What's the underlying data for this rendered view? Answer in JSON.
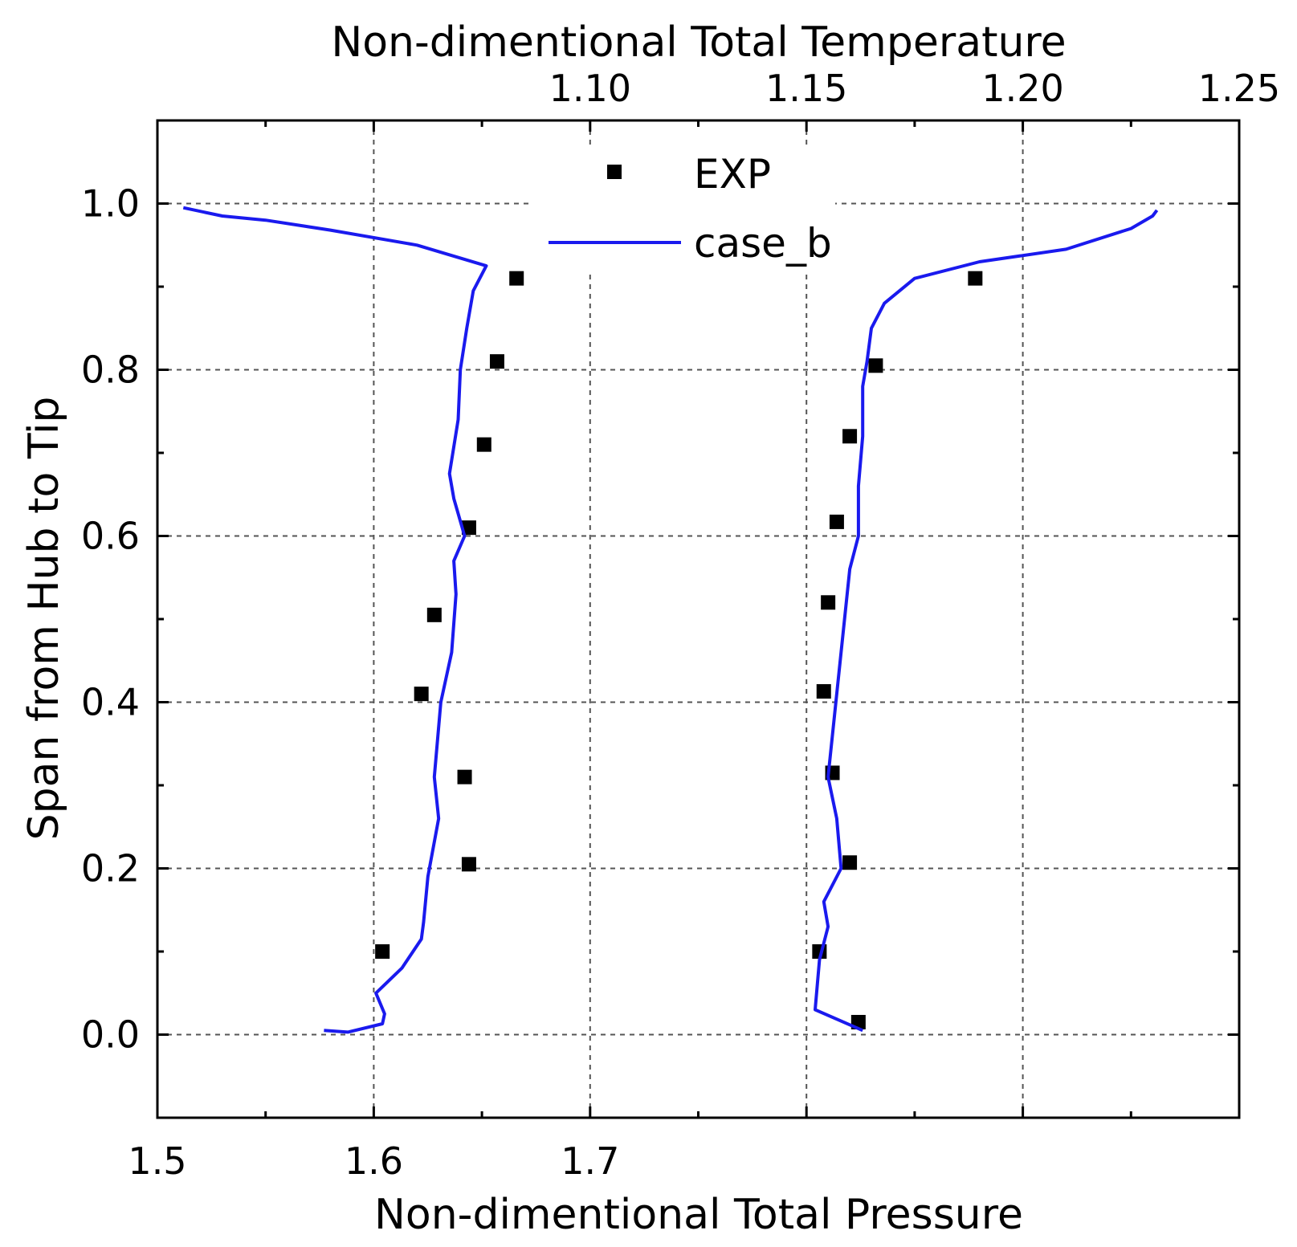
{
  "chart_data": {
    "type": "line",
    "title": "",
    "xlabel": "Non-dimentional Total Pressure",
    "ylabel": "Span from Hub to Tip",
    "x2label": "Non-dimentional Total Temperature",
    "xlim": [
      1.5,
      2.0
    ],
    "x2lim": [
      1.0,
      1.25
    ],
    "ylim": [
      -0.1,
      1.1
    ],
    "grid": true,
    "legend": {
      "position": "top-center"
    },
    "x_ticks": [
      {
        "value": 1.5,
        "label": "1.5"
      },
      {
        "value": 1.6,
        "label": "1.6"
      },
      {
        "value": 1.7,
        "label": "1.7"
      }
    ],
    "x2_ticks": [
      {
        "value": 1.1,
        "label": "1.10"
      },
      {
        "value": 1.15,
        "label": "1.15"
      },
      {
        "value": 1.2,
        "label": "1.20"
      },
      {
        "value": 1.25,
        "label": "1.25"
      }
    ],
    "y_ticks": [
      {
        "value": 0.0,
        "label": "0.0"
      },
      {
        "value": 0.2,
        "label": "0.2"
      },
      {
        "value": 0.4,
        "label": "0.4"
      },
      {
        "value": 0.6,
        "label": "0.6"
      },
      {
        "value": 0.8,
        "label": "0.8"
      },
      {
        "value": 1.0,
        "label": "1.0"
      }
    ],
    "series": [
      {
        "name": "EXP",
        "kind": "scatter",
        "color": "#000000",
        "axis": "bottom",
        "points": [
          {
            "x": 1.666,
            "y": 0.91
          },
          {
            "x": 1.657,
            "y": 0.81
          },
          {
            "x": 1.651,
            "y": 0.71
          },
          {
            "x": 1.644,
            "y": 0.61
          },
          {
            "x": 1.628,
            "y": 0.505
          },
          {
            "x": 1.622,
            "y": 0.41
          },
          {
            "x": 1.642,
            "y": 0.31
          },
          {
            "x": 1.644,
            "y": 0.205
          },
          {
            "x": 1.604,
            "y": 0.1
          }
        ]
      },
      {
        "name": "EXP",
        "kind": "scatter",
        "color": "#000000",
        "axis": "top",
        "points": [
          {
            "x": 1.189,
            "y": 0.91
          },
          {
            "x": 1.166,
            "y": 0.805
          },
          {
            "x": 1.16,
            "y": 0.72
          },
          {
            "x": 1.157,
            "y": 0.617
          },
          {
            "x": 1.155,
            "y": 0.52
          },
          {
            "x": 1.154,
            "y": 0.413
          },
          {
            "x": 1.156,
            "y": 0.315
          },
          {
            "x": 1.16,
            "y": 0.207
          },
          {
            "x": 1.153,
            "y": 0.1
          },
          {
            "x": 1.162,
            "y": 0.015
          }
        ]
      },
      {
        "name": "case_b",
        "kind": "line",
        "color": "#1a1aee",
        "axis": "bottom",
        "points": [
          {
            "x": 1.577,
            "y": 0.005
          },
          {
            "x": 1.588,
            "y": 0.003
          },
          {
            "x": 1.604,
            "y": 0.013
          },
          {
            "x": 1.605,
            "y": 0.025
          },
          {
            "x": 1.601,
            "y": 0.05
          },
          {
            "x": 1.613,
            "y": 0.08
          },
          {
            "x": 1.622,
            "y": 0.115
          },
          {
            "x": 1.623,
            "y": 0.135
          },
          {
            "x": 1.625,
            "y": 0.19
          },
          {
            "x": 1.63,
            "y": 0.26
          },
          {
            "x": 1.628,
            "y": 0.31
          },
          {
            "x": 1.631,
            "y": 0.4
          },
          {
            "x": 1.636,
            "y": 0.46
          },
          {
            "x": 1.638,
            "y": 0.53
          },
          {
            "x": 1.637,
            "y": 0.57
          },
          {
            "x": 1.642,
            "y": 0.6
          },
          {
            "x": 1.637,
            "y": 0.645
          },
          {
            "x": 1.635,
            "y": 0.675
          },
          {
            "x": 1.639,
            "y": 0.74
          },
          {
            "x": 1.64,
            "y": 0.8
          },
          {
            "x": 1.643,
            "y": 0.85
          },
          {
            "x": 1.646,
            "y": 0.895
          },
          {
            "x": 1.652,
            "y": 0.925
          },
          {
            "x": 1.62,
            "y": 0.95
          },
          {
            "x": 1.58,
            "y": 0.968
          },
          {
            "x": 1.55,
            "y": 0.98
          },
          {
            "x": 1.53,
            "y": 0.985
          },
          {
            "x": 1.512,
            "y": 0.995
          }
        ]
      },
      {
        "name": "case_b",
        "kind": "line",
        "color": "#1a1aee",
        "axis": "top",
        "points": [
          {
            "x": 1.163,
            "y": 0.005
          },
          {
            "x": 1.152,
            "y": 0.03
          },
          {
            "x": 1.153,
            "y": 0.09
          },
          {
            "x": 1.155,
            "y": 0.13
          },
          {
            "x": 1.154,
            "y": 0.16
          },
          {
            "x": 1.158,
            "y": 0.2
          },
          {
            "x": 1.157,
            "y": 0.26
          },
          {
            "x": 1.155,
            "y": 0.31
          },
          {
            "x": 1.156,
            "y": 0.36
          },
          {
            "x": 1.158,
            "y": 0.46
          },
          {
            "x": 1.16,
            "y": 0.56
          },
          {
            "x": 1.162,
            "y": 0.6
          },
          {
            "x": 1.162,
            "y": 0.66
          },
          {
            "x": 1.163,
            "y": 0.72
          },
          {
            "x": 1.163,
            "y": 0.78
          },
          {
            "x": 1.164,
            "y": 0.81
          },
          {
            "x": 1.165,
            "y": 0.85
          },
          {
            "x": 1.168,
            "y": 0.88
          },
          {
            "x": 1.175,
            "y": 0.91
          },
          {
            "x": 1.19,
            "y": 0.93
          },
          {
            "x": 1.21,
            "y": 0.945
          },
          {
            "x": 1.225,
            "y": 0.97
          },
          {
            "x": 1.23,
            "y": 0.985
          },
          {
            "x": 1.231,
            "y": 0.992
          }
        ]
      }
    ]
  }
}
